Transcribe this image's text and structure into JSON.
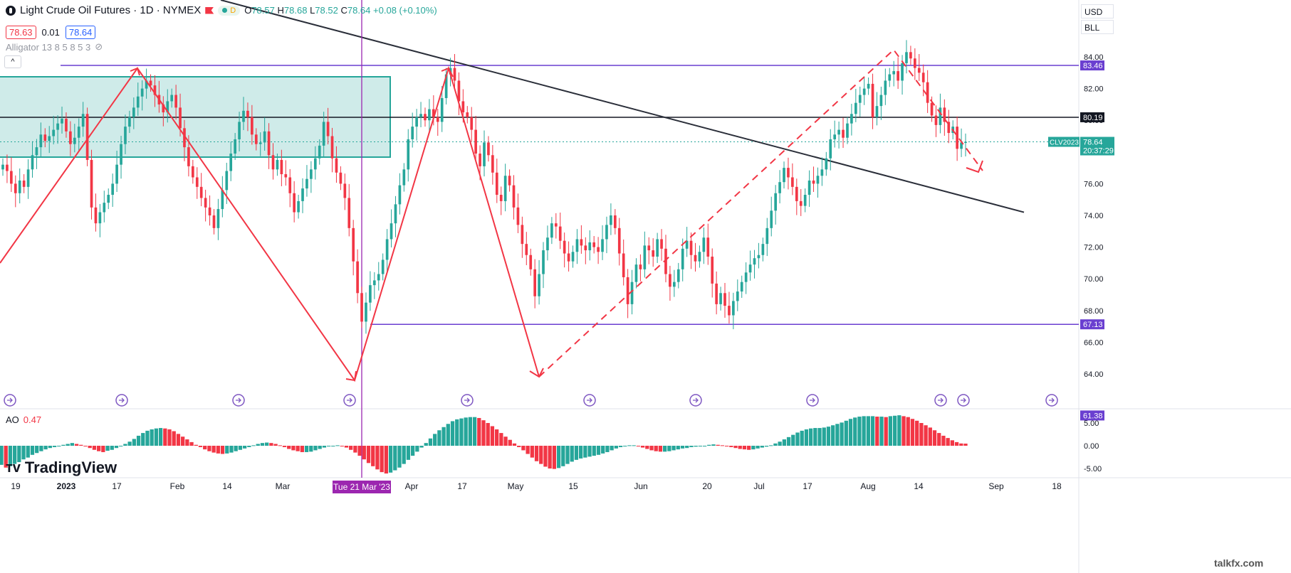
{
  "header": {
    "title": "Light Crude Oil Futures · 1D · NYMEX",
    "pill_label": "D",
    "ohlc": {
      "o_label": "O",
      "o": "78.57",
      "h_label": "H",
      "h": "78.68",
      "l_label": "L",
      "l": "78.52",
      "c_label": "C",
      "c": "78.64",
      "change": "+0.08 (+0.10%)"
    }
  },
  "trade": {
    "sell": "78.63",
    "spread": "0.01",
    "buy": "78.64"
  },
  "indicator": {
    "name": "Alligator 13 8 5 8 5 3"
  },
  "ao": {
    "label": "AO",
    "value": "0.47"
  },
  "controls": {
    "currency": "USD",
    "unit": "BLL",
    "collapse": "^"
  },
  "branding": {
    "name": "TradingView",
    "watermark": "talkfx.com"
  },
  "colors": {
    "up": "#26a69a",
    "down": "#f23645",
    "level": "#6a3fd0",
    "cursor": "#9c27b0",
    "box": "#26a69a"
  },
  "chart_data": {
    "type": "candlestick",
    "symbol_label": "CLV2023",
    "countdown": "20:37:29",
    "last_price": "78.64",
    "y_ticks": [
      84,
      82,
      80,
      78,
      76,
      74,
      72,
      70,
      68,
      66,
      64
    ],
    "y_tick_labels": [
      "84.00",
      "82.00",
      "80.00",
      "78.00",
      "76.00",
      "74.00",
      "72.00",
      "70.00",
      "68.00",
      "66.00",
      "64.00"
    ],
    "x_ticks": [
      "19",
      "2023",
      "17",
      "Feb",
      "14",
      "Mar",
      "Apr",
      "17",
      "May",
      "15",
      "Jun",
      "20",
      "Jul",
      "17",
      "Aug",
      "14",
      "Sep",
      "18"
    ],
    "cursor_date": "Tue 21 Mar '23",
    "levels": [
      {
        "label": "83.46",
        "value": 83.46,
        "color": "#6a3fd0"
      },
      {
        "label": "80.19",
        "value": 80.19,
        "color": "#131722"
      },
      {
        "label": "67.13",
        "value": 67.13,
        "color": "#6a3fd0"
      },
      {
        "label": "61.38",
        "value": 61.38,
        "color": "#6a3fd0"
      }
    ],
    "ao_ticks": [
      "5.00",
      "0.00",
      "-5.00"
    ],
    "close": [
      77.2,
      76.8,
      76.0,
      75.4,
      76.2,
      75.8,
      76.9,
      77.8,
      78.3,
      79.1,
      78.7,
      79.0,
      79.4,
      79.8,
      80.1,
      79.3,
      78.5,
      78.9,
      79.6,
      80.4,
      77.5,
      74.5,
      73.5,
      74.2,
      74.8,
      75.3,
      76.0,
      77.2,
      78.5,
      79.6,
      80.2,
      80.8,
      81.5,
      82.0,
      82.5,
      82.2,
      81.6,
      81.0,
      80.5,
      81.2,
      81.6,
      80.8,
      79.5,
      78.3,
      77.1,
      76.4,
      75.8,
      75.1,
      74.5,
      74.0,
      73.2,
      74.4,
      75.6,
      76.8,
      77.9,
      78.8,
      79.9,
      80.6,
      80.2,
      79.1,
      78.5,
      78.6,
      79.3,
      77.8,
      76.9,
      77.5,
      76.6,
      76.4,
      75.4,
      74.2,
      74.9,
      75.7,
      76.3,
      76.9,
      77.6,
      78.4,
      79.9,
      79.0,
      77.6,
      76.7,
      76.0,
      75.1,
      73.2,
      71.1,
      69.1,
      67.3,
      68.5,
      69.6,
      69.9,
      70.3,
      71.2,
      72.5,
      73.5,
      74.7,
      75.9,
      76.9,
      78.8,
      79.6,
      80.2,
      80.4,
      80.0,
      80.7,
      80.2,
      79.9,
      81.4,
      82.9,
      83.3,
      82.5,
      81.2,
      80.5,
      80.2,
      79.4,
      77.9,
      77.1,
      78.6,
      77.8,
      76.7,
      75.3,
      74.9,
      76.5,
      75.9,
      74.5,
      73.4,
      72.2,
      71.5,
      70.6,
      68.9,
      70.3,
      71.8,
      72.6,
      73.5,
      73.3,
      72.4,
      71.6,
      71.1,
      71.7,
      72.5,
      72.1,
      71.8,
      72.3,
      72.0,
      71.7,
      72.5,
      73.4,
      74.0,
      73.2,
      71.6,
      70.1,
      68.4,
      69.8,
      70.9,
      70.6,
      72.1,
      71.8,
      71.4,
      72.5,
      71.9,
      70.3,
      69.5,
      69.8,
      70.6,
      71.9,
      72.4,
      71.5,
      71.1,
      71.7,
      72.6,
      71.4,
      69.7,
      68.4,
      69.1,
      68.3,
      67.7,
      68.6,
      69.2,
      69.8,
      70.4,
      70.9,
      71.3,
      71.5,
      72.2,
      73.2,
      74.3,
      75.4,
      76.1,
      77.0,
      76.4,
      75.8,
      74.9,
      74.6,
      75.3,
      76.2,
      76.0,
      76.5,
      76.9,
      77.6,
      78.8,
      79.1,
      79.4,
      78.9,
      79.8,
      80.4,
      81.1,
      81.6,
      82.0,
      82.3,
      80.2,
      80.9,
      81.6,
      82.5,
      82.9,
      83.1,
      82.5,
      83.6,
      84.3,
      83.9,
      83.3,
      83.0,
      82.4,
      81.1,
      80.3,
      79.7,
      80.8,
      79.9,
      79.2,
      79.6,
      78.2,
      78.6,
      78.64
    ],
    "ao_values": [
      -4.2,
      -4.8,
      -4.5,
      -4.0,
      -3.6,
      -3.0,
      -2.6,
      -2.0,
      -1.6,
      -1.2,
      -0.8,
      -0.5,
      -0.3,
      -0.1,
      0.2,
      0.4,
      0.6,
      0.4,
      0.2,
      -0.1,
      -0.5,
      -0.9,
      -1.2,
      -1.4,
      -1.1,
      -0.9,
      -0.5,
      -0.1,
      0.4,
      0.9,
      1.5,
      2.2,
      2.8,
      3.3,
      3.6,
      3.8,
      3.9,
      3.8,
      3.6,
      3.2,
      2.6,
      2.0,
      1.4,
      0.8,
      0.2,
      -0.3,
      -0.8,
      -1.2,
      -1.5,
      -1.7,
      -1.8,
      -1.7,
      -1.5,
      -1.2,
      -0.9,
      -0.6,
      -0.3,
      0.1,
      0.4,
      0.6,
      0.7,
      0.6,
      0.4,
      0.1,
      -0.3,
      -0.7,
      -1.0,
      -1.2,
      -1.4,
      -1.4,
      -1.3,
      -1.0,
      -0.7,
      -0.4,
      -0.1,
      0.0,
      0.1,
      -0.1,
      -0.4,
      -0.9,
      -1.5,
      -2.2,
      -3.0,
      -3.8,
      -4.5,
      -5.2,
      -5.8,
      -6.1,
      -5.9,
      -5.4,
      -4.8,
      -4.0,
      -3.1,
      -2.2,
      -1.3,
      -0.4,
      0.6,
      1.6,
      2.6,
      3.4,
      4.1,
      4.8,
      5.4,
      5.8,
      6.0,
      6.2,
      6.3,
      6.3,
      6.1,
      5.6,
      5.0,
      4.3,
      3.6,
      2.8,
      2.0,
      1.3,
      0.5,
      -0.3,
      -1.0,
      -1.8,
      -2.6,
      -3.4,
      -4.0,
      -4.6,
      -5.0,
      -5.1,
      -4.9,
      -4.5,
      -4.0,
      -3.5,
      -3.1,
      -2.8,
      -2.6,
      -2.4,
      -2.2,
      -2.0,
      -1.7,
      -1.4,
      -1.0,
      -0.6,
      -0.3,
      -0.1,
      0.1,
      0.1,
      -0.1,
      -0.4,
      -0.7,
      -1.0,
      -1.2,
      -1.3,
      -1.3,
      -1.2,
      -1.0,
      -0.8,
      -0.6,
      -0.5,
      -0.3,
      -0.2,
      -0.1,
      0.0,
      0.2,
      0.3,
      0.2,
      0.1,
      -0.1,
      -0.3,
      -0.5,
      -0.7,
      -0.8,
      -0.9,
      -0.8,
      -0.6,
      -0.4,
      -0.2,
      0.1,
      0.5,
      0.9,
      1.4,
      1.9,
      2.4,
      2.9,
      3.3,
      3.6,
      3.8,
      3.9,
      3.9,
      4.0,
      4.2,
      4.5,
      4.8,
      5.1,
      5.5,
      5.9,
      6.2,
      6.4,
      6.5,
      6.5,
      6.5,
      6.4,
      6.4,
      6.3,
      6.5,
      6.6,
      6.7,
      6.5,
      6.3,
      5.9,
      5.5,
      5.0,
      4.5,
      4.0,
      3.4,
      2.8,
      2.2,
      1.7,
      1.2,
      0.8,
      0.5,
      0.47
    ]
  }
}
